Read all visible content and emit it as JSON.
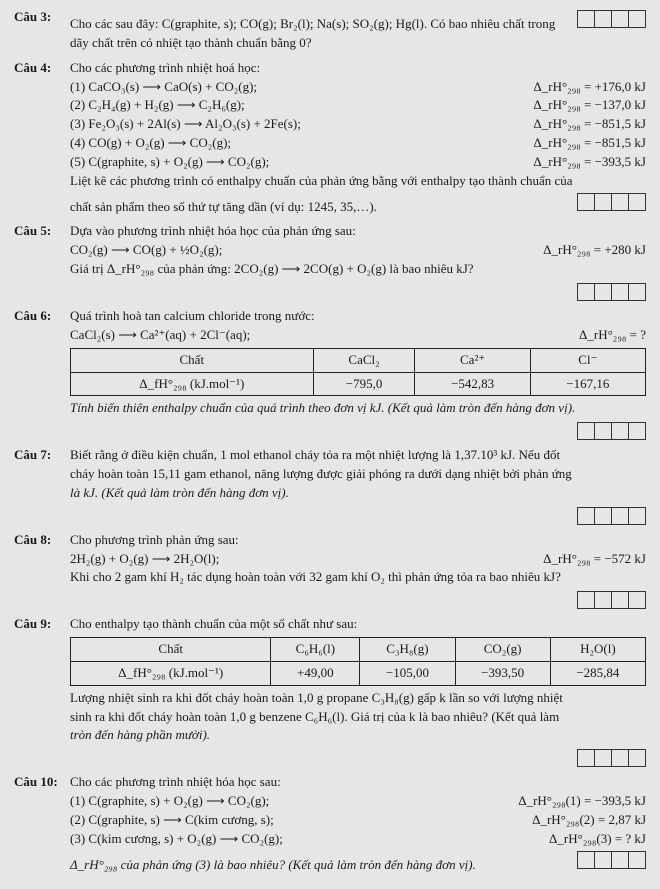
{
  "c3": {
    "label": "Câu 3:",
    "text1": "Cho các sau đây: C(graphite, s); CO(g); Br₂(l); Na(s); SO₂(g); Hg(l). Có bao nhiêu chất trong",
    "text2": "dãy chất trên có nhiệt tạo thành chuẩn bằng 0?"
  },
  "c4": {
    "label": "Câu 4:",
    "intro": "Cho các phương trình nhiệt hoá học:",
    "r1l": "(1) CaCO₃(s) ⟶ CaO(s) + CO₂(g);",
    "r1r": "Δ_rH°₂₉₈ = +176,0 kJ",
    "r2l": "(2) C₂H₄(g) + H₂(g) ⟶ C₂H₆(g);",
    "r2r": "Δ_rH°₂₉₈ = −137,0 kJ",
    "r3l": "(3) Fe₂O₃(s) + 2Al(s) ⟶ Al₂O₃(s) + 2Fe(s);",
    "r3r": "Δ_rH°₂₉₈ = −851,5 kJ",
    "r4l": "(4) CO(g) + O₂(g) ⟶ CO₂(g);",
    "r4r": "Δ_rH°₂₉₈ = −851,5 kJ",
    "r5l": "(5) C(graphite, s) + O₂(g) ⟶ CO₂(g);",
    "r5r": "Δ_rH°₂₉₈ = −393,5 kJ",
    "text1": "Liệt kê các phương trình có enthalpy chuẩn của phản ứng bằng với enthalpy tạo thành chuẩn của",
    "text2": "chất sản phẩm theo số thứ tự tăng dần (ví dụ: 1245, 35,…)."
  },
  "c5": {
    "label": "Câu 5:",
    "l1": "Dựa vào phương trình nhiệt hóa học của phản ứng sau:",
    "r2l": "CO₂(g) ⟶ CO(g) + ½O₂(g);",
    "r2r": "Δ_rH°₂₉₈ = +280 kJ",
    "l3": "Giá trị Δ_rH°₂₉₈ của phản ứng: 2CO₂(g) ⟶ 2CO(g) + O₂(g) là bao nhiêu kJ?"
  },
  "c6": {
    "label": "Câu 6:",
    "l1": "Quá trình hoà tan calcium chloride trong nước:",
    "r2l": "CaCl₂(s) ⟶ Ca²⁺(aq) + 2Cl⁻(aq);",
    "r2r": "Δ_rH°₂₉₈ = ?",
    "th1": "Chất",
    "th2": "CaCl₂",
    "th3": "Ca²⁺",
    "th4": "Cl⁻",
    "td1": "Δ_fH°₂₉₈ (kJ.mol⁻¹)",
    "td2": "−795,0",
    "td3": "−542,83",
    "td4": "−167,16",
    "l3": "Tính biến thiên enthalpy chuẩn của quá trình theo đơn vị kJ. (Kết quả làm tròn đến hàng đơn vị)."
  },
  "c7": {
    "label": "Câu 7:",
    "l1": "Biết rằng ở điều kiện chuẩn, 1 mol ethanol cháy tỏa ra một nhiệt lượng là 1,37.10³ kJ. Nếu đốt",
    "l2": "cháy hoàn toàn 15,11 gam ethanol, năng lượng được giải phóng ra dưới dạng nhiệt bởi phản ứng",
    "l3": "là kJ. (Kết quả làm tròn đến hàng đơn vị)."
  },
  "c8": {
    "label": "Câu 8:",
    "l1": "Cho phương trình phản ứng sau:",
    "r2l": "2H₂(g) + O₂(g) ⟶ 2H₂O(l);",
    "r2r": "Δ_rH°₂₉₈ = −572 kJ",
    "l3": "Khi cho 2 gam khí H₂ tác dụng hoàn toàn với 32 gam khí O₂ thì phản ứng tỏa ra bao nhiêu kJ?"
  },
  "c9": {
    "label": "Câu 9:",
    "l1": "Cho enthalpy tạo thành chuẩn của một số chất như sau:",
    "th1": "Chất",
    "th2": "C₆H₆(l)",
    "th3": "C₃H₈(g)",
    "th4": "CO₂(g)",
    "th5": "H₂O(l)",
    "td1": "Δ_fH°₂₉₈ (kJ.mol⁻¹)",
    "td2": "+49,00",
    "td3": "−105,00",
    "td4": "−393,50",
    "td5": "−285,84",
    "l2": "Lượng nhiệt sinh ra khi đốt cháy hoàn toàn 1,0 g propane C₃H₈(g) gấp k lần so với lượng nhiệt",
    "l3": "sinh ra khi đốt cháy hoàn toàn 1,0 g benzene C₆H₆(l). Giá trị của k là bao nhiêu? (Kết quả làm",
    "l4": "tròn đến hàng phần mười)."
  },
  "c10": {
    "label": "Câu 10:",
    "l1": "Cho các phương trình nhiệt hóa học sau:",
    "r1l": "(1) C(graphite, s) + O₂(g) ⟶ CO₂(g);",
    "r1r": "Δ_rH°₂₉₈(1) = −393,5 kJ",
    "r2l": "(2) C(graphite, s) ⟶ C(kim cương, s);",
    "r2r": "Δ_rH°₂₉₈(2) = 2,87 kJ",
    "r3l": "(3) C(kim cương, s) + O₂(g) ⟶ CO₂(g);",
    "r3r": "Δ_rH°₂₉₈(3) = ? kJ",
    "l5": "Δ_rH°₂₉₈ của phản ứng (3) là bao nhiêu? (Kết quả làm tròn đến hàng đơn vị)."
  }
}
